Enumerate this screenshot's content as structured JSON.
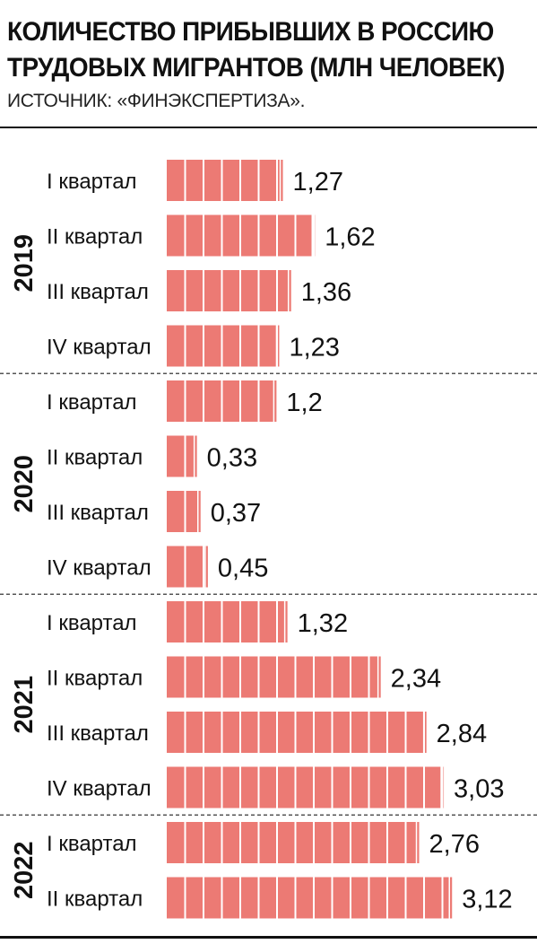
{
  "header": {
    "title_line1": "КОЛИЧЕСТВО ПРИБЫВШИХ В РОССИЮ",
    "title_line2": "ТРУДОВЫХ МИГРАНТОВ (МЛН ЧЕЛОВЕК)",
    "source": "ИСТОЧНИК: «ФИНЭКСПЕРТИЗА»."
  },
  "colors": {
    "bar": "#ec7a74",
    "text": "#111111",
    "separator": "#555555"
  },
  "chart_data": {
    "type": "bar",
    "orientation": "horizontal",
    "title": "КОЛИЧЕСТВО ПРИБЫВШИХ В РОССИЮ ТРУДОВЫХ МИГРАНТОВ (МЛН ЧЕЛОВЕК)",
    "groups": [
      {
        "year": "2019",
        "items": [
          {
            "quarter": "I  квартал",
            "value": 1.27,
            "label": "1,27"
          },
          {
            "quarter": "II квартал",
            "value": 1.62,
            "label": "1,62"
          },
          {
            "quarter": "III квартал",
            "value": 1.36,
            "label": "1,36"
          },
          {
            "quarter": "IV квартал",
            "value": 1.23,
            "label": "1,23"
          }
        ]
      },
      {
        "year": "2020",
        "items": [
          {
            "quarter": "I  квартал",
            "value": 1.2,
            "label": "1,2"
          },
          {
            "quarter": "II квартал",
            "value": 0.33,
            "label": "0,33"
          },
          {
            "quarter": "III квартал",
            "value": 0.37,
            "label": "0,37"
          },
          {
            "quarter": "IV квартал",
            "value": 0.45,
            "label": "0,45"
          }
        ]
      },
      {
        "year": "2021",
        "items": [
          {
            "quarter": "I  квартал",
            "value": 1.32,
            "label": "1,32"
          },
          {
            "quarter": "II квартал",
            "value": 2.34,
            "label": "2,34"
          },
          {
            "quarter": "III квартал",
            "value": 2.84,
            "label": "2,84"
          },
          {
            "quarter": "IV квартал",
            "value": 3.03,
            "label": "3,03"
          }
        ]
      },
      {
        "year": "2022",
        "items": [
          {
            "quarter": "I  квартал",
            "value": 2.76,
            "label": "2,76"
          },
          {
            "quarter": "II квартал",
            "value": 3.12,
            "label": "3,12"
          }
        ]
      }
    ]
  }
}
